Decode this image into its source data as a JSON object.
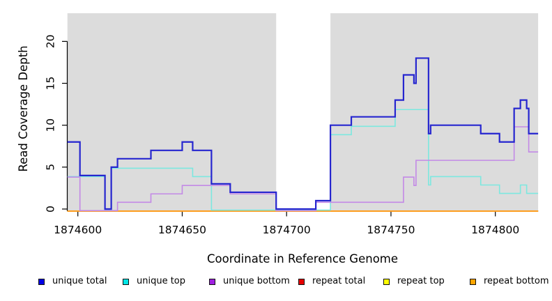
{
  "chart_data": {
    "type": "line",
    "subtype": "step",
    "title": "",
    "xlabel": "Coordinate in Reference Genome",
    "ylabel": "Read Coverage Depth",
    "xlim": [
      1874595,
      1874820.5
    ],
    "ylim": [
      0,
      23.4
    ],
    "x_ticks": [
      1874600,
      1874650,
      1874700,
      1874750,
      1874800
    ],
    "y_ticks": [
      0,
      5,
      10,
      15,
      20
    ],
    "grid": false,
    "legend_position": "bottom",
    "plot_bg": "#DCDCDC",
    "gap_region": {
      "start": 1874695,
      "end": 1874721,
      "color": "#FFFFFF"
    },
    "series": [
      {
        "name": "repeat total",
        "color": "#DD0000",
        "width": 1.6,
        "dodge": 2.8,
        "steps": [
          [
            1874595,
            0
          ]
        ]
      },
      {
        "name": "repeat top",
        "color": "#FFEE00",
        "width": 1.6,
        "dodge": 2.9,
        "steps": [
          [
            1874595,
            0
          ]
        ]
      },
      {
        "name": "repeat bottom",
        "color": "#FF9D1E",
        "width": 2.0,
        "dodge": 3.0,
        "steps": [
          [
            1874595,
            0
          ]
        ]
      },
      {
        "name": "unique top",
        "color": "#7CE8DF",
        "width": 1.6,
        "dodge": 1.6,
        "steps": [
          [
            1874595,
            4
          ],
          [
            1874613,
            0
          ],
          [
            1874616,
            5
          ],
          [
            1874655,
            4
          ],
          [
            1874664,
            0
          ],
          [
            1874721,
            9
          ],
          [
            1874731,
            10
          ],
          [
            1874752,
            12
          ],
          [
            1874768,
            3
          ],
          [
            1874769,
            4
          ],
          [
            1874793,
            3
          ],
          [
            1874802,
            2
          ],
          [
            1874812,
            3
          ],
          [
            1874815,
            2
          ]
        ]
      },
      {
        "name": "unique bottom",
        "color": "#C389E6",
        "width": 1.6,
        "dodge": 2.3,
        "steps": [
          [
            1874595,
            4
          ],
          [
            1874601,
            0
          ],
          [
            1874619,
            1
          ],
          [
            1874635,
            2
          ],
          [
            1874650,
            3
          ],
          [
            1874673,
            2
          ],
          [
            1874695,
            0
          ],
          [
            1874714,
            1
          ],
          [
            1874756,
            4
          ],
          [
            1874761,
            3
          ],
          [
            1874762,
            6
          ],
          [
            1874809,
            10
          ],
          [
            1874816,
            7
          ]
        ]
      },
      {
        "name": "unique total",
        "color": "#2626CF",
        "width": 2.2,
        "dodge": 0,
        "steps": [
          [
            1874595,
            8
          ],
          [
            1874601,
            4
          ],
          [
            1874613,
            0
          ],
          [
            1874616,
            5
          ],
          [
            1874619,
            6
          ],
          [
            1874635,
            7
          ],
          [
            1874650,
            8
          ],
          [
            1874655,
            7
          ],
          [
            1874664,
            3
          ],
          [
            1874673,
            2
          ],
          [
            1874695,
            0
          ],
          [
            1874714,
            1
          ],
          [
            1874721,
            10
          ],
          [
            1874731,
            11
          ],
          [
            1874752,
            13
          ],
          [
            1874756,
            16
          ],
          [
            1874761,
            15
          ],
          [
            1874762,
            18
          ],
          [
            1874768,
            9
          ],
          [
            1874769,
            10
          ],
          [
            1874793,
            9
          ],
          [
            1874802,
            8
          ],
          [
            1874809,
            12
          ],
          [
            1874812,
            13
          ],
          [
            1874815,
            12
          ],
          [
            1874816,
            9
          ]
        ]
      }
    ],
    "legend": [
      {
        "label": "unique total",
        "swatch": "#0000E6"
      },
      {
        "label": "unique top",
        "swatch": "#00E6E6"
      },
      {
        "label": "unique bottom",
        "swatch": "#A020E0"
      },
      {
        "label": "repeat total",
        "swatch": "#E60000"
      },
      {
        "label": "repeat top",
        "swatch": "#FFFF00"
      },
      {
        "label": "repeat bottom",
        "swatch": "#FFA500"
      }
    ]
  }
}
